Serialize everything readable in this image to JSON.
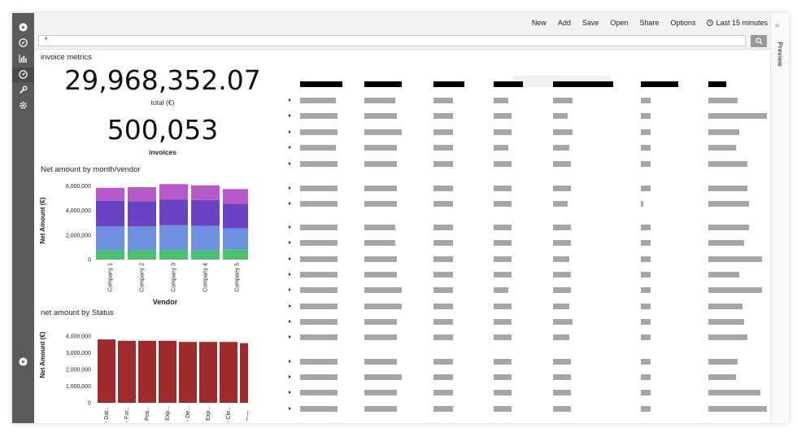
{
  "toolbar": {
    "new": "New",
    "add": "Add",
    "save": "Save",
    "open": "Open",
    "share": "Share",
    "options": "Options",
    "time_range": "Last 15 minutes",
    "time_icon": "clock-icon"
  },
  "search": {
    "value": "*",
    "button_icon": "search-icon"
  },
  "sidebar": {
    "icons": [
      "discover-icon",
      "compass-icon",
      "bar-chart-icon",
      "dashboard-icon",
      "wrench-icon",
      "gear-icon"
    ],
    "bottom_icon": "play-icon"
  },
  "preview": {
    "label": "Preview",
    "collapse_icon": "double-chevron-left-icon"
  },
  "metric_panel": {
    "title": "invoice metrics",
    "total_value": "29,968,352.07",
    "total_label": "total (€)",
    "invoices_value": "500,053",
    "invoices_label": "invoices"
  },
  "colors": {
    "stack": [
      "#4dbf73",
      "#6f8fe0",
      "#6a43c4",
      "#b65ac9"
    ],
    "status_bar": "#9e2a2b"
  },
  "chart_data": [
    {
      "type": "bar",
      "stacked": true,
      "title": "Net amount by month/vendor",
      "xlabel": "Vendor",
      "ylabel": "Net Amount (€)",
      "categories": [
        "Company 1",
        "Company 2",
        "Company 3",
        "Company 4",
        "Company 5"
      ],
      "yticks": [
        "6,000,000",
        "4,000,000",
        "2,000,000",
        "0"
      ],
      "ylim": [
        0,
        6500000
      ],
      "series": [
        {
          "values": [
            800000,
            800000,
            800000,
            750000,
            850000
          ]
        },
        {
          "values": [
            1900000,
            1900000,
            2000000,
            2000000,
            1700000
          ]
        },
        {
          "values": [
            2100000,
            2050000,
            2100000,
            2100000,
            2000000
          ]
        },
        {
          "values": [
            1050000,
            1150000,
            1250000,
            1200000,
            1200000
          ]
        }
      ]
    },
    {
      "type": "bar",
      "title": "net amount by Status",
      "ylabel": "Net Amount (€)",
      "categories": [
        "1 - Dat...",
        "2 - For...",
        "4 - Pos...",
        "7 - Exp...",
        "3 - De...",
        "5 - Exp...",
        "8 - Cle...",
        "6 - Exp..."
      ],
      "values": [
        3800000,
        3720000,
        3720000,
        3720000,
        3650000,
        3650000,
        3650000,
        3580000
      ],
      "yticks": [
        "4,000,000",
        "3,000,000",
        "2,000,000",
        "1,000,000",
        "0"
      ],
      "ylim": [
        0,
        4000000
      ]
    }
  ]
}
